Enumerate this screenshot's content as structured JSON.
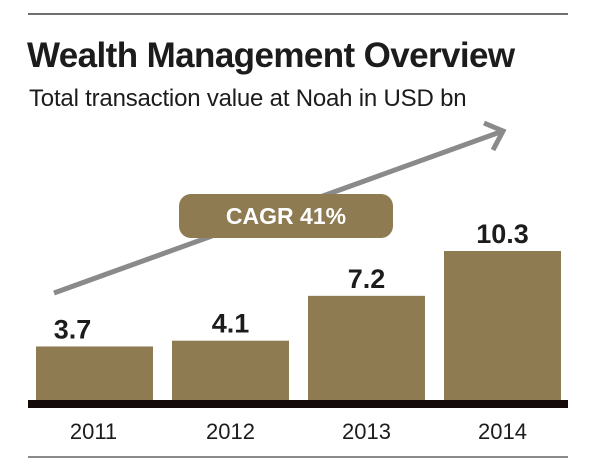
{
  "chart_data": {
    "type": "bar",
    "title": "Wealth Management Overview",
    "subtitle": "Total transaction value at Noah in USD bn",
    "xlabel": "",
    "ylabel": "",
    "categories": [
      "2011",
      "2012",
      "2013",
      "2014"
    ],
    "values": [
      3.7,
      4.1,
      7.2,
      10.3
    ],
    "value_labels": [
      "3.7",
      "4.1",
      "7.2",
      "10.3"
    ],
    "ylim": [
      0,
      12.7
    ],
    "grid": false,
    "annotation": {
      "label": "CAGR 41%",
      "type": "trend-arrow",
      "direction": "up-right"
    },
    "colors": {
      "bar": "#8E7B52",
      "arrow": "#8A8A8A",
      "axis": "#140A0A",
      "badge": "#8E7B52",
      "badge_text": "#FFFFFF"
    }
  }
}
